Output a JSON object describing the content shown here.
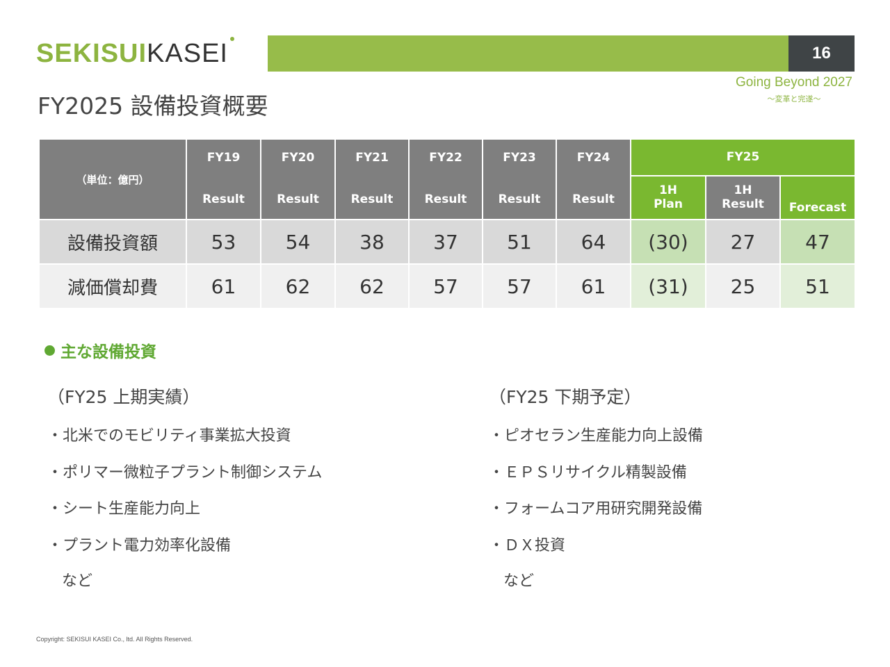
{
  "header": {
    "logo_bold": "SEKISUI",
    "logo_light": "KASEI",
    "page_number": "16",
    "title": "FY2025 設備投資概要",
    "tagline": "Going Beyond 2027",
    "tagline_sub": "〜変革と完遂〜",
    "accent_color": "#97bc4a",
    "dark_color": "#3f4446"
  },
  "table": {
    "unit_label": "（単位：億円）",
    "years": [
      {
        "fy": "FY19",
        "sub": "Result"
      },
      {
        "fy": "FY20",
        "sub": "Result"
      },
      {
        "fy": "FY21",
        "sub": "Result"
      },
      {
        "fy": "FY22",
        "sub": "Result"
      },
      {
        "fy": "FY23",
        "sub": "Result"
      },
      {
        "fy": "FY24",
        "sub": "Result"
      }
    ],
    "fy25": {
      "label": "FY25",
      "plan_top": "1H",
      "plan_bottom": "Plan",
      "result_top": "1H",
      "result_bottom": "Result",
      "forecast": "Forecast"
    },
    "rows": [
      {
        "label": "設備投資額",
        "values": [
          "53",
          "54",
          "38",
          "37",
          "51",
          "64"
        ],
        "plan": "(30)",
        "result": "27",
        "forecast": "47"
      },
      {
        "label": "減価償却費",
        "values": [
          "61",
          "62",
          "62",
          "57",
          "57",
          "61"
        ],
        "plan": "(31)",
        "result": "25",
        "forecast": "51"
      }
    ]
  },
  "section": {
    "heading": "主な設備投資",
    "left": {
      "title": "（FY25 上期実績）",
      "items": [
        "・北米でのモビリティ事業拡大投資",
        "・ポリマー微粒子プラント制御システム",
        "・シート生産能力向上",
        "・プラント電力効率化設備"
      ],
      "etc": "など"
    },
    "right": {
      "title": "（FY25 下期予定）",
      "items": [
        "・ピオセラン生産能力向上設備",
        "・ＥＰＳリサイクル精製設備",
        "・フォームコア用研究開発設備",
        "・ＤＸ投資"
      ],
      "etc": "など"
    }
  },
  "footer": {
    "copyright": "Copyright: SEKISUI KASEI Co., ltd. All Rights Reserved."
  }
}
